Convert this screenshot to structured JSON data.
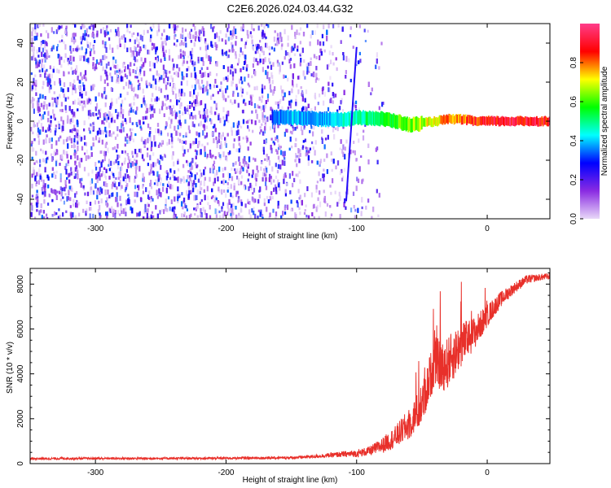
{
  "title": "C2E6.2026.024.03.44.G32",
  "chart_data": [
    {
      "type": "heatmap",
      "title": "C2E6.2026.024.03.44.G32",
      "xlabel": "Height of straight line (km)",
      "ylabel": "Frequency (Hz)",
      "xlim": [
        -350,
        48
      ],
      "ylim": [
        -50,
        50
      ],
      "x_ticks": [
        -300,
        -200,
        -100,
        0
      ],
      "y_ticks": [
        -40,
        -20,
        0,
        20,
        40
      ],
      "colorbar": {
        "label": "Normalized spectral amplitude",
        "range": [
          0.0,
          1.0
        ],
        "ticks": [
          0.0,
          0.2,
          0.4,
          0.6,
          0.8
        ],
        "colors": [
          "#e8d8f8",
          "#8a2be2",
          "#0000ff",
          "#00ffff",
          "#00ff00",
          "#ffff00",
          "#ff0000",
          "#ff3d8a"
        ]
      },
      "noise_region": {
        "x_from": -350,
        "x_to": -85,
        "density": "high",
        "amplitude": [
          0.0,
          0.35
        ]
      },
      "signal_trace": {
        "x": [
          -165,
          -150,
          -130,
          -110,
          -95,
          -80,
          -70,
          -60,
          -50,
          -40,
          -30,
          -20,
          -10,
          0,
          20,
          48
        ],
        "frequency": [
          2,
          2,
          1,
          1,
          2,
          1,
          0,
          -2,
          -1,
          0,
          1,
          1,
          0,
          0,
          0,
          0
        ],
        "amplitude": [
          0.35,
          0.45,
          0.4,
          0.5,
          0.55,
          0.6,
          0.65,
          0.7,
          0.75,
          0.8,
          0.85,
          0.9,
          0.95,
          1.0,
          1.0,
          1.0
        ]
      },
      "spur_trace": {
        "x": [
          -108,
          -100
        ],
        "frequency": [
          -41,
          38
        ]
      }
    },
    {
      "type": "line",
      "xlabel": "Height of straight line (km)",
      "ylabel": "SNR (10 * v/v)",
      "xlim": [
        -350,
        48
      ],
      "ylim": [
        0,
        8700
      ],
      "x_ticks": [
        -300,
        -200,
        -100,
        0
      ],
      "y_ticks": [
        0,
        2000,
        4000,
        6000,
        8000
      ],
      "series": [
        {
          "name": "SNR",
          "color": "#e8302a",
          "x": [
            -350,
            -300,
            -250,
            -200,
            -150,
            -130,
            -110,
            -100,
            -90,
            -80,
            -70,
            -60,
            -50,
            -45,
            -40,
            -35,
            -30,
            -25,
            -20,
            -10,
            0,
            10,
            20,
            30,
            40,
            48
          ],
          "values": [
            220,
            230,
            230,
            240,
            260,
            330,
            420,
            450,
            560,
            820,
            1200,
            1750,
            2600,
            3600,
            4600,
            4300,
            4500,
            4900,
            5300,
            5800,
            6600,
            7300,
            7800,
            8200,
            8300,
            8350
          ],
          "spread": [
            100,
            100,
            100,
            100,
            110,
            160,
            260,
            330,
            420,
            700,
            1000,
            1400,
            1800,
            2000,
            2200,
            2300,
            2300,
            2200,
            2000,
            1500,
            1000,
            700,
            500,
            400,
            300,
            300
          ]
        }
      ]
    }
  ]
}
